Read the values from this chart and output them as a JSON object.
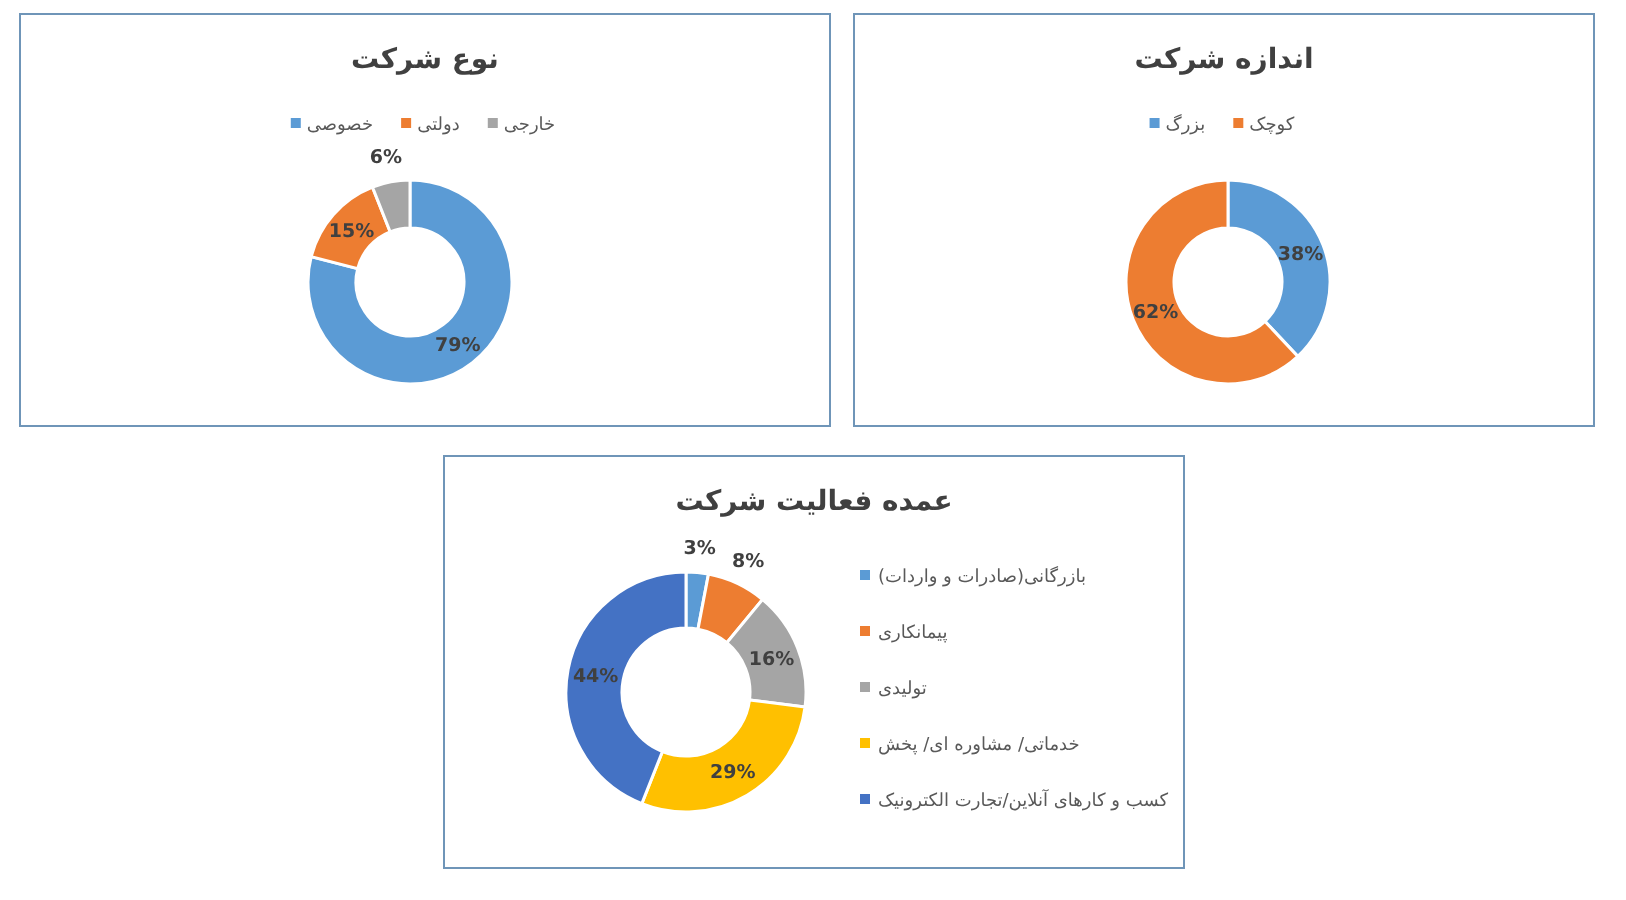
{
  "chart_data": [
    {
      "type": "donut",
      "title": "نوع شرکت",
      "categories": [
        "خصوصی",
        "دولتی",
        "خارجی"
      ],
      "values": [
        79,
        15,
        6
      ],
      "value_labels": [
        "79%",
        "15%",
        "6%"
      ],
      "colors": [
        "#5b9bd5",
        "#ed7d31",
        "#a5a5a5"
      ],
      "legend": "top"
    },
    {
      "type": "donut",
      "title": "اندازه شرکت",
      "categories": [
        "بزرگ",
        "کوچک"
      ],
      "values": [
        38,
        62
      ],
      "value_labels": [
        "38%",
        "62%"
      ],
      "colors": [
        "#5b9bd5",
        "#ed7d31"
      ],
      "legend": "top"
    },
    {
      "type": "donut",
      "title": "عمده فعالیت شرکت",
      "categories": [
        "بازرگانی(صادرات و واردات)",
        "پیمانکاری",
        "تولیدی",
        "خدماتی/ مشاوره ای/ پخش",
        "کسب و کارهای آنلاین/تجارت الکترونیک"
      ],
      "values": [
        3,
        8,
        16,
        29,
        44
      ],
      "value_labels": [
        "3%",
        "8%",
        "16%",
        "29%",
        "44%"
      ],
      "colors": [
        "#5b9bd5",
        "#ed7d31",
        "#a5a5a5",
        "#ffc000",
        "#4472c4"
      ],
      "legend": "right"
    }
  ]
}
